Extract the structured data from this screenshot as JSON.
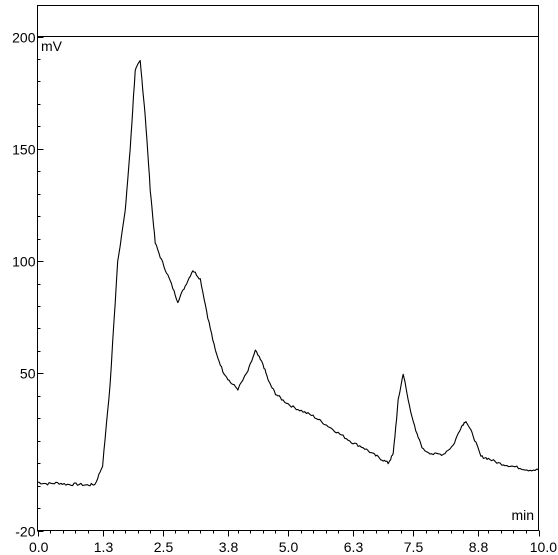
{
  "chart_data": {
    "type": "line",
    "title": "",
    "y_unit": "mV",
    "x_unit": "min",
    "xlim": [
      0.0,
      10.0
    ],
    "ylim": [
      -20,
      200
    ],
    "x_ticks": [
      "0.0",
      "1.3",
      "2.5",
      "3.8",
      "5.0",
      "6.3",
      "7.5",
      "8.8",
      "10.0"
    ],
    "y_ticks": [
      "200",
      "150",
      "100",
      "50",
      "-20"
    ],
    "y_tick_values": [
      200,
      150,
      100,
      50,
      -20
    ],
    "grid": false,
    "line_color": "#000000",
    "series": [
      {
        "x": [
          0.0,
          0.2,
          0.4,
          0.6,
          0.8,
          1.0,
          1.15,
          1.3,
          1.45,
          1.6,
          1.75,
          1.85,
          1.95,
          2.05,
          2.15,
          2.25,
          2.35,
          2.5,
          2.65,
          2.8,
          2.95,
          3.1,
          3.25,
          3.4,
          3.55,
          3.7,
          3.85,
          4.0,
          4.2,
          4.35,
          4.5,
          4.62,
          4.75,
          4.9,
          5.1,
          5.3,
          5.5,
          5.7,
          5.9,
          6.1,
          6.3,
          6.5,
          6.7,
          6.85,
          7.0,
          7.1,
          7.2,
          7.3,
          7.4,
          7.55,
          7.7,
          7.9,
          8.1,
          8.3,
          8.45,
          8.55,
          8.7,
          8.85,
          9.0,
          9.2,
          9.4,
          9.6,
          9.8,
          10.0
        ],
        "y": [
          1.5,
          0.8,
          1.2,
          0.5,
          0.6,
          0.2,
          0.6,
          9,
          45,
          100,
          122,
          150,
          185,
          189,
          165,
          132,
          108,
          99,
          91,
          82,
          89,
          96,
          92,
          75,
          60,
          51,
          46,
          43,
          51,
          60,
          54,
          46,
          41,
          38,
          35,
          33,
          31,
          28,
          25,
          22,
          19,
          17,
          14,
          12,
          10,
          14,
          38,
          50,
          38,
          24,
          16,
          14,
          14,
          18,
          26,
          29,
          22,
          13,
          12,
          10,
          9,
          8,
          7,
          7
        ]
      }
    ]
  }
}
